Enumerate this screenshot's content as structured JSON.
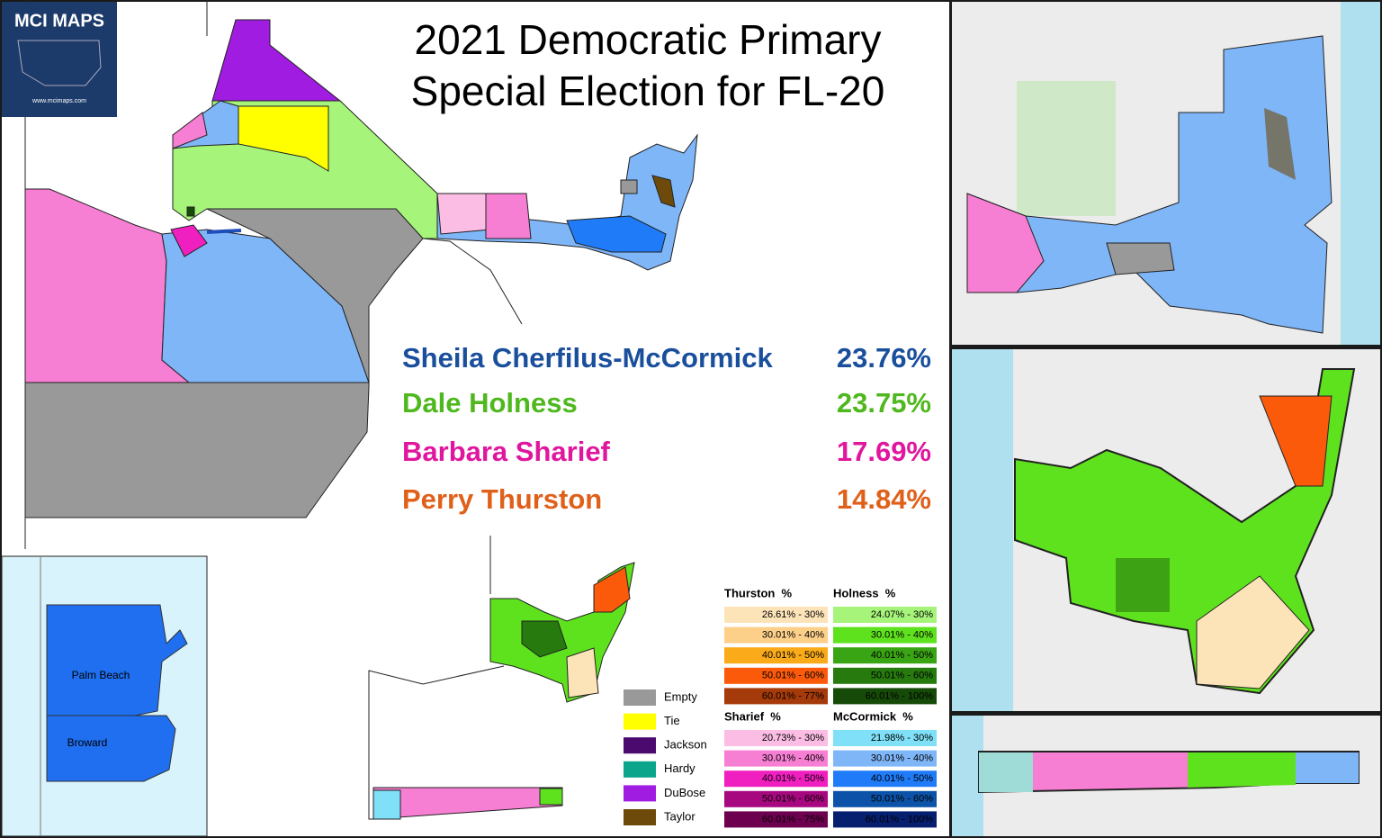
{
  "logo": {
    "title": "MCI MAPS",
    "url": "www.mcimaps.com"
  },
  "title": [
    "2021 Democratic Primary",
    "Special Election for FL-20"
  ],
  "results": [
    {
      "name": "Sheila Cherfilus-McCormick",
      "share": "23.76%",
      "color": "#1a4f9c"
    },
    {
      "name": "Dale Holness",
      "share": "23.75%",
      "color": "#4fb81e"
    },
    {
      "name": "Barbara Sharief",
      "share": "17.69%",
      "color": "#e0179e"
    },
    {
      "name": "Perry Thurston",
      "share": "14.84%",
      "color": "#e0601a"
    }
  ],
  "legend": {
    "other": [
      {
        "label": "Empty",
        "color": "#999999"
      },
      {
        "label": "Tie",
        "color": "#ffff00"
      },
      {
        "label": "Jackson",
        "color": "#4b0a6e"
      },
      {
        "label": "Hardy",
        "color": "#0aa58a"
      },
      {
        "label": "DuBose",
        "color": "#a01ce0"
      },
      {
        "label": "Taylor",
        "color": "#6e4a0a"
      }
    ],
    "groups": [
      {
        "title": "Thurston  %",
        "items": [
          {
            "label": "26.61% - 30%",
            "color": "#fde4b8"
          },
          {
            "label": "30.01% - 40%",
            "color": "#fdd08a"
          },
          {
            "label": "40.01% - 50%",
            "color": "#fbab1a"
          },
          {
            "label": "50.01% - 60%",
            "color": "#fb5a0a"
          },
          {
            "label": "60.01% - 77%",
            "color": "#a53a0a"
          }
        ]
      },
      {
        "title": "Holness  %",
        "items": [
          {
            "label": "24.07% - 30%",
            "color": "#a6f57a"
          },
          {
            "label": "30.01% - 40%",
            "color": "#5fe21e"
          },
          {
            "label": "40.01% - 50%",
            "color": "#3aa514"
          },
          {
            "label": "50.01% - 60%",
            "color": "#267a0e"
          },
          {
            "label": "60.01% - 100%",
            "color": "#164a08"
          }
        ]
      },
      {
        "title": "Sharief  %",
        "items": [
          {
            "label": "20.73% - 30%",
            "color": "#fbbde3"
          },
          {
            "label": "30.01% - 40%",
            "color": "#f77fd3"
          },
          {
            "label": "40.01% - 50%",
            "color": "#f01fc0"
          },
          {
            "label": "50.01% - 60%",
            "color": "#a8087f"
          },
          {
            "label": "60.01% - 75%",
            "color": "#6e0050"
          }
        ]
      },
      {
        "title": "McCormick  %",
        "items": [
          {
            "label": "21.98% - 30%",
            "color": "#7fe0f8"
          },
          {
            "label": "30.01% - 40%",
            "color": "#7fb6f8"
          },
          {
            "label": "40.01% - 50%",
            "color": "#1f7bf8"
          },
          {
            "label": "50.01% - 60%",
            "color": "#0c52a8"
          },
          {
            "label": "60.01% - 100%",
            "color": "#061f6e"
          }
        ]
      }
    ]
  },
  "inset_labels": [
    "Palm Beach",
    "Broward"
  ]
}
